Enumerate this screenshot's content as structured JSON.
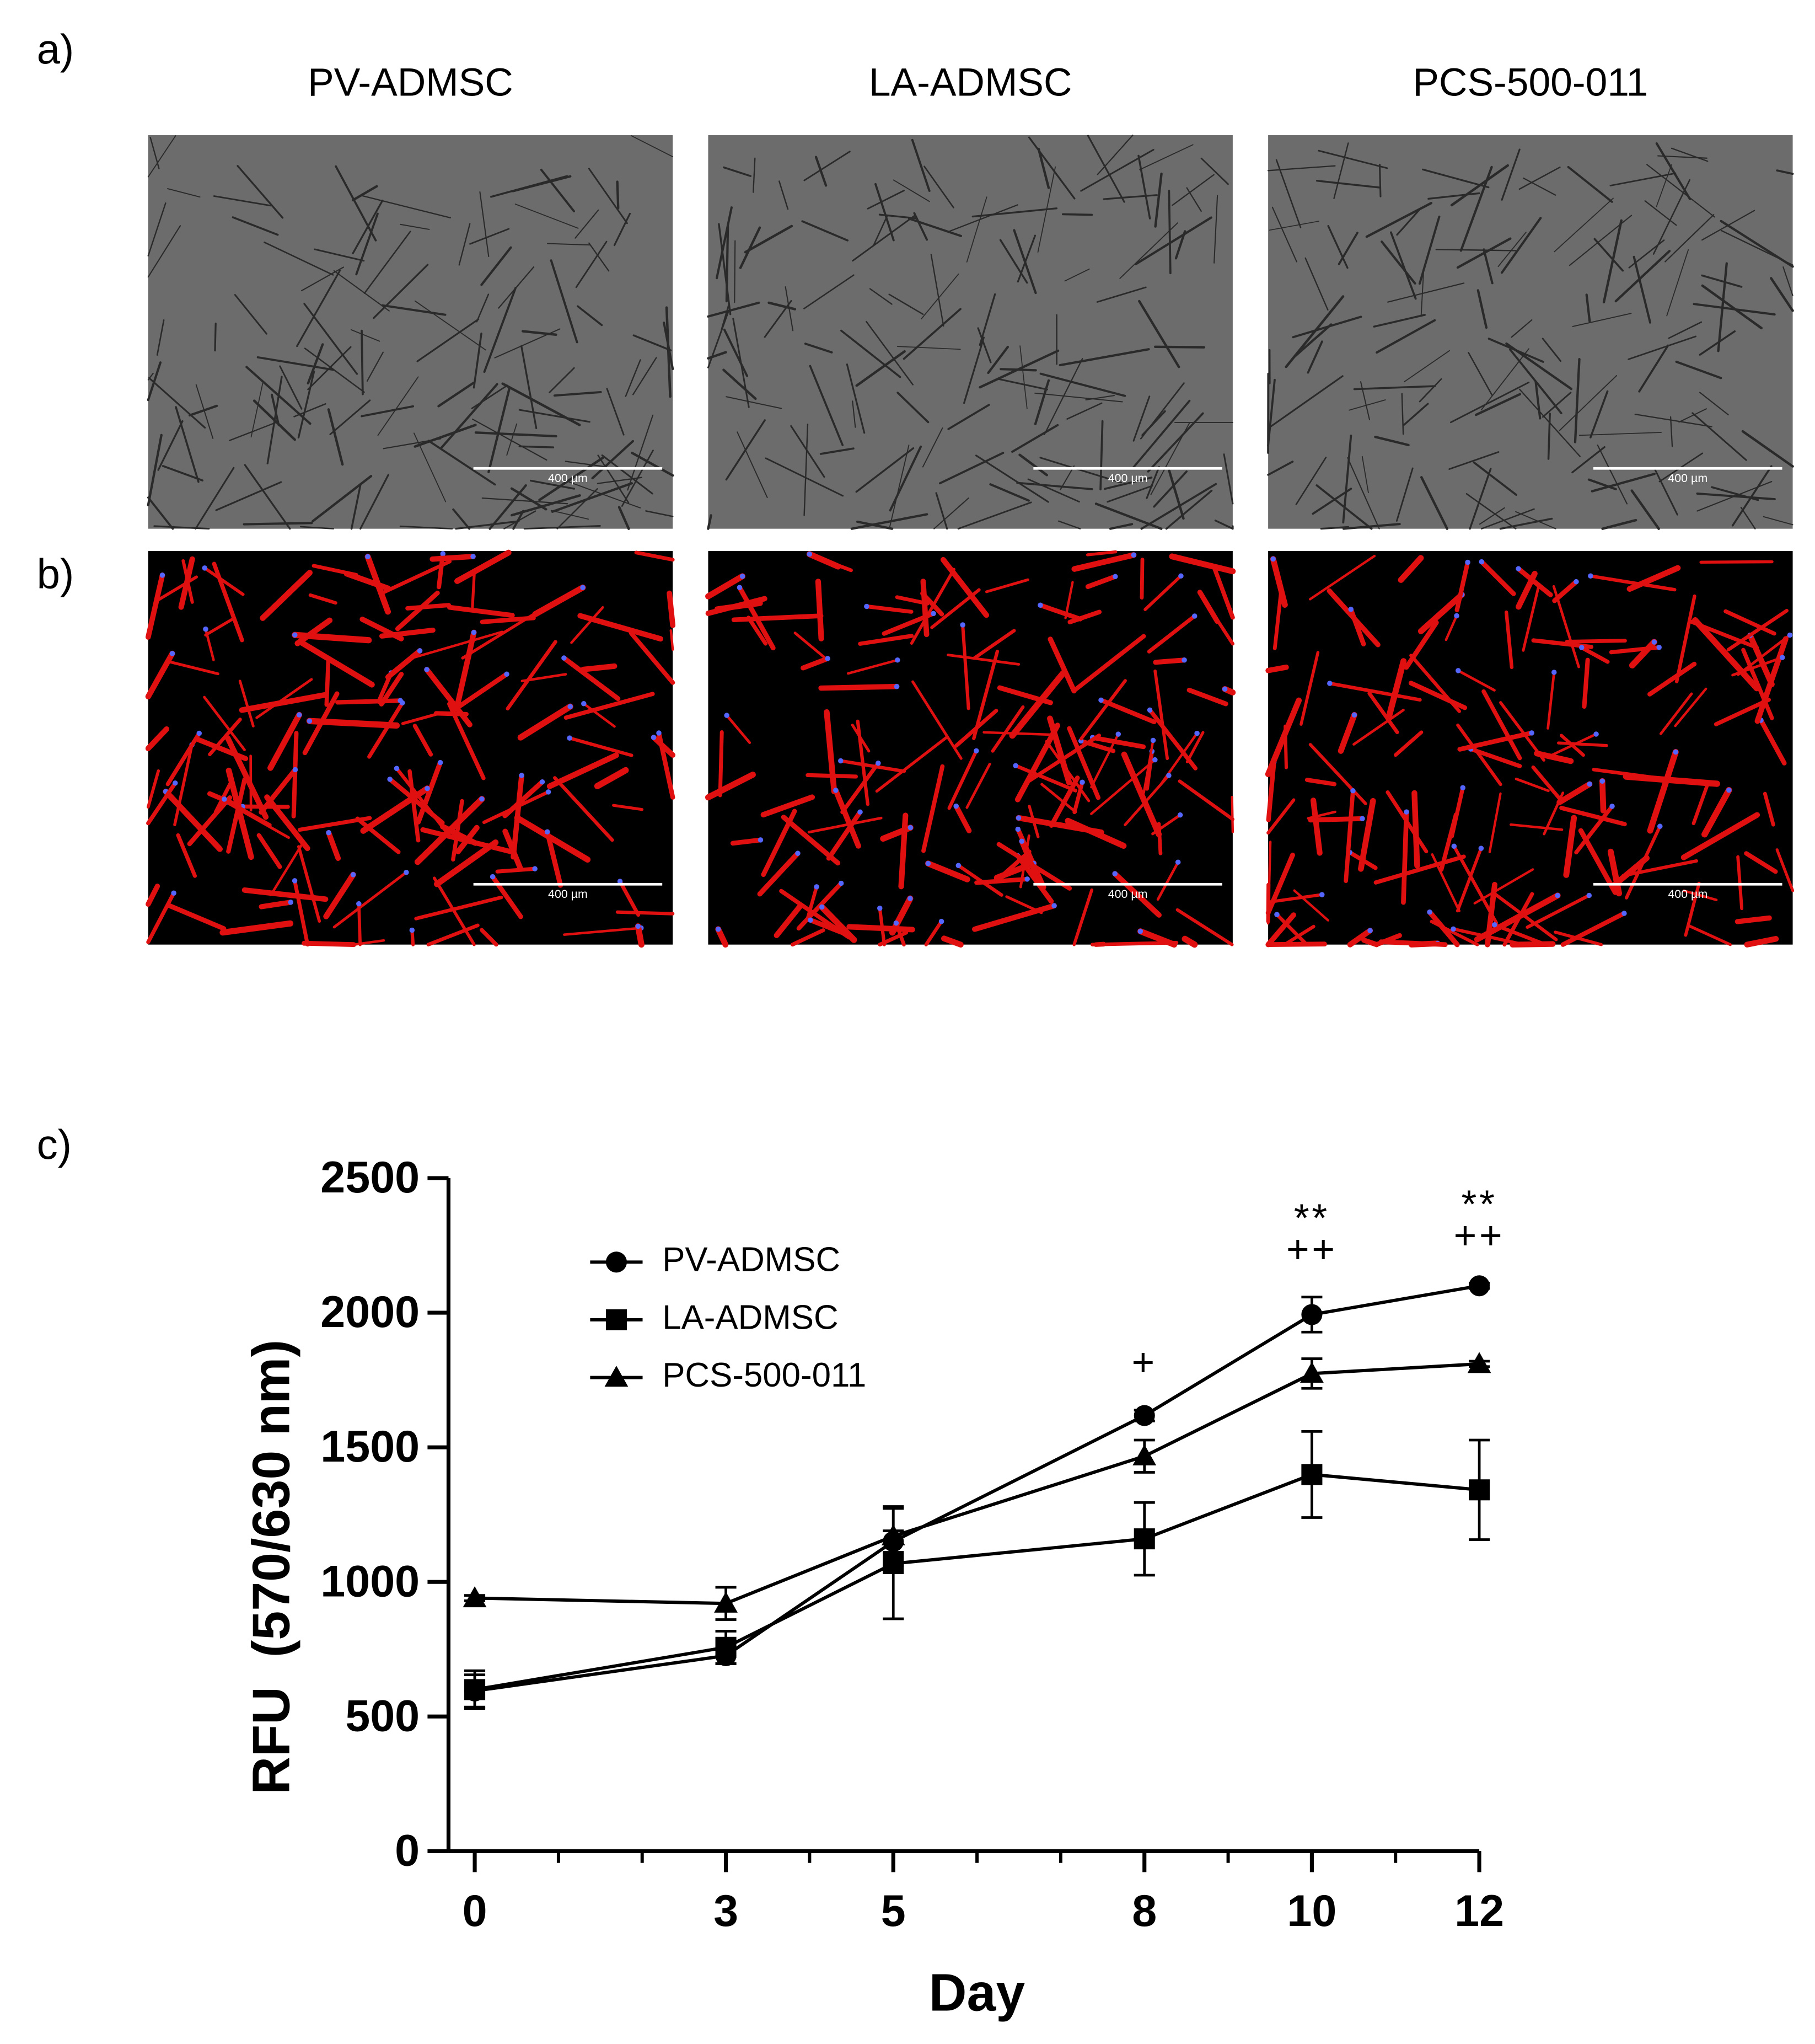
{
  "panel_labels": [
    "a)",
    "b)",
    "c)"
  ],
  "column_titles": [
    "PV-ADMSC",
    "LA-ADMSC",
    "PCS-500-011"
  ],
  "scale_bar_label": "400 µm",
  "chart_data": {
    "type": "line",
    "x_label": "Day",
    "y_label": "RFU  (570/630 nm)",
    "x": [
      0,
      3,
      5,
      8,
      10,
      12
    ],
    "xlim": [
      0,
      12
    ],
    "xticks": [
      0,
      3,
      5,
      8,
      10,
      12
    ],
    "ylim": [
      0,
      2500
    ],
    "yticks": [
      0,
      500,
      1000,
      1500,
      2000,
      2500
    ],
    "series": [
      {
        "name": "PV-ADMSC",
        "color": "#000000",
        "marker": "circle",
        "values": [
          595,
          726,
          1150,
          1618,
          1993,
          2100
        ],
        "errors": [
          60,
          30,
          40,
          20,
          65,
          10
        ]
      },
      {
        "name": "LA-ADMSC",
        "color": "#000000",
        "marker": "square",
        "values": [
          600,
          757,
          1068,
          1160,
          1399,
          1342
        ],
        "errors": [
          70,
          60,
          205,
          135,
          160,
          185
        ]
      },
      {
        "name": "PCS-500-011",
        "color": "#000000",
        "marker": "triangle",
        "values": [
          940,
          920,
          1170,
          1467,
          1774,
          1810
        ],
        "errors": [
          10,
          60,
          110,
          60,
          55,
          10
        ]
      }
    ],
    "annotations": [
      {
        "x": 8,
        "text": "+"
      },
      {
        "x": 10,
        "text": "**"
      },
      {
        "x": 10,
        "text": "++"
      },
      {
        "x": 12,
        "text": "**"
      },
      {
        "x": 12,
        "text": "++"
      }
    ]
  }
}
